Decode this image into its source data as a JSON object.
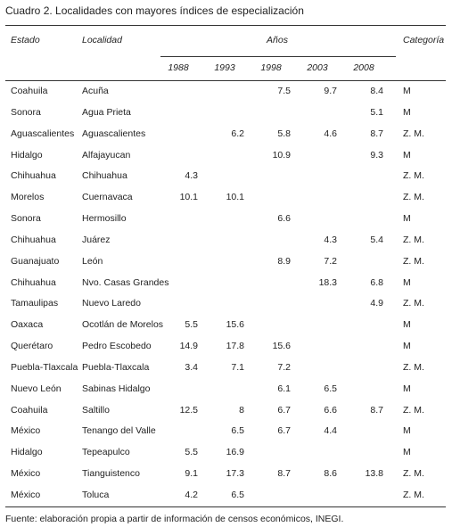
{
  "title": "Cuadro 2. Localidades con mayores índices de especialización",
  "table": {
    "headers": {
      "estado": "Estado",
      "localidad": "Localidad",
      "anios": "Años",
      "categoria": "Categoría"
    },
    "years": [
      "1988",
      "1993",
      "1998",
      "2003",
      "2008"
    ],
    "rows": [
      [
        "Coahuila",
        "Acuña",
        null,
        null,
        7.5,
        9.7,
        8.4,
        "M"
      ],
      [
        "Sonora",
        "Agua Prieta",
        null,
        null,
        null,
        null,
        5.1,
        "M"
      ],
      [
        "Aguascalientes",
        "Aguascalientes",
        null,
        6.2,
        5.8,
        4.6,
        8.7,
        "Z. M."
      ],
      [
        "Hidalgo",
        "Alfajayucan",
        null,
        null,
        10.9,
        null,
        9.3,
        "M"
      ],
      [
        "Chihuahua",
        "Chihuahua",
        4.3,
        null,
        null,
        null,
        null,
        "Z. M."
      ],
      [
        "Morelos",
        "Cuernavaca",
        10.1,
        10.1,
        null,
        null,
        null,
        "Z. M."
      ],
      [
        "Sonora",
        "Hermosillo",
        null,
        null,
        6.6,
        null,
        null,
        "M"
      ],
      [
        "Chihuahua",
        "Juárez",
        null,
        null,
        null,
        4.3,
        5.4,
        "Z. M."
      ],
      [
        "Guanajuato",
        "León",
        null,
        null,
        8.9,
        7.2,
        null,
        "Z. M."
      ],
      [
        "Chihuahua",
        "Nvo. Casas Grandes",
        null,
        null,
        null,
        18.3,
        6.8,
        "M"
      ],
      [
        "Tamaulipas",
        "Nuevo Laredo",
        null,
        null,
        null,
        null,
        4.9,
        "Z. M."
      ],
      [
        "Oaxaca",
        "Ocotlán de Morelos",
        5.5,
        15.6,
        null,
        null,
        null,
        "M"
      ],
      [
        "Querétaro",
        "Pedro Escobedo",
        14.9,
        17.8,
        15.6,
        null,
        null,
        "M"
      ],
      [
        "Puebla-Tlaxcala",
        "Puebla-Tlaxcala",
        3.4,
        7.1,
        7.2,
        null,
        null,
        "Z. M."
      ],
      [
        "Nuevo León",
        "Sabinas Hidalgo",
        null,
        null,
        6.1,
        6.5,
        null,
        "M"
      ],
      [
        "Coahuila",
        "Saltillo",
        12.5,
        8,
        6.7,
        6.6,
        8.7,
        "Z. M."
      ],
      [
        "México",
        "Tenango del Valle",
        null,
        6.5,
        6.7,
        4.4,
        null,
        "M"
      ],
      [
        "Hidalgo",
        "Tepeapulco",
        5.5,
        16.9,
        null,
        null,
        null,
        "M"
      ],
      [
        "México",
        "Tianguistenco",
        9.1,
        17.3,
        8.7,
        8.6,
        13.8,
        "Z. M."
      ],
      [
        "México",
        "Toluca",
        4.2,
        6.5,
        null,
        null,
        null,
        "Z. M."
      ]
    ]
  },
  "footnote": "Fuente: elaboración propia a partir de información de censos económicos, INEGI."
}
